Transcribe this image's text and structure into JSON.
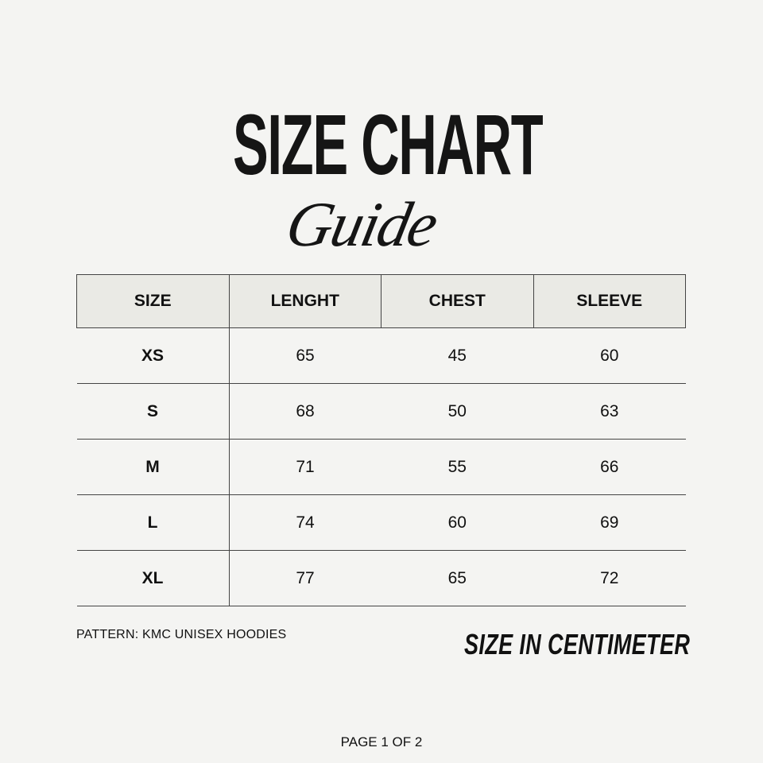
{
  "title": {
    "main": "SIZE CHART",
    "script": "Guide"
  },
  "table": {
    "headers": [
      "SIZE",
      "LENGHT",
      "CHEST",
      "SLEEVE"
    ],
    "rows": [
      [
        "XS",
        "65",
        "45",
        "60"
      ],
      [
        "S",
        "68",
        "50",
        "63"
      ],
      [
        "M",
        "71",
        "55",
        "66"
      ],
      [
        "L",
        "74",
        "60",
        "69"
      ],
      [
        "XL",
        "77",
        "65",
        "72"
      ]
    ]
  },
  "footer": {
    "pattern": "PATTERN: KMC UNISEX HOODIES",
    "unit": "SIZE IN CENTIMETER",
    "page": "PAGE 1 OF 2"
  },
  "colors": {
    "background": "#f4f4f2",
    "header_fill": "#eaeae5",
    "text": "#111111"
  }
}
